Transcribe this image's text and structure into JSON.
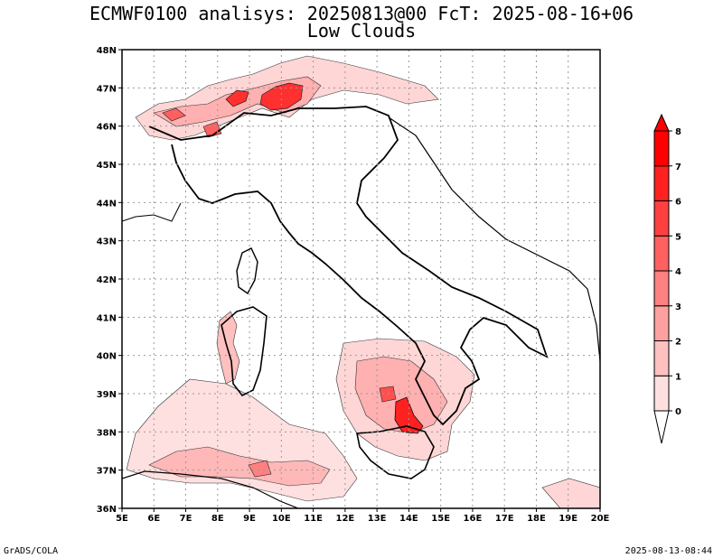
{
  "title_line1": "ECMWF0100 analisys: 20250813@00 FcT: 2025-08-16+06",
  "title_line2": "Low Clouds",
  "footer_left": "GrADS/COLA",
  "footer_right": "2025-08-13-08:44",
  "map": {
    "lon_range": [
      5,
      20
    ],
    "lat_range": [
      36,
      48
    ],
    "lon_labels": [
      "5E",
      "6E",
      "7E",
      "8E",
      "9E",
      "10E",
      "11E",
      "12E",
      "13E",
      "14E",
      "15E",
      "16E",
      "17E",
      "18E",
      "19E",
      "20E"
    ],
    "lat_labels": [
      "36N",
      "37N",
      "38N",
      "39N",
      "40N",
      "41N",
      "42N",
      "43N",
      "44N",
      "45N",
      "46N",
      "47N",
      "48N"
    ],
    "grid": "dotted"
  },
  "colorbar": {
    "levels": [
      "0",
      "1",
      "2",
      "3",
      "4",
      "5",
      "6",
      "7",
      "8"
    ],
    "colors": [
      "#ffffff",
      "#ffe0e0",
      "#ffc0c0",
      "#ffa0a0",
      "#ff8080",
      "#ff6060",
      "#ff4040",
      "#ff2020",
      "#ff0000"
    ]
  }
}
